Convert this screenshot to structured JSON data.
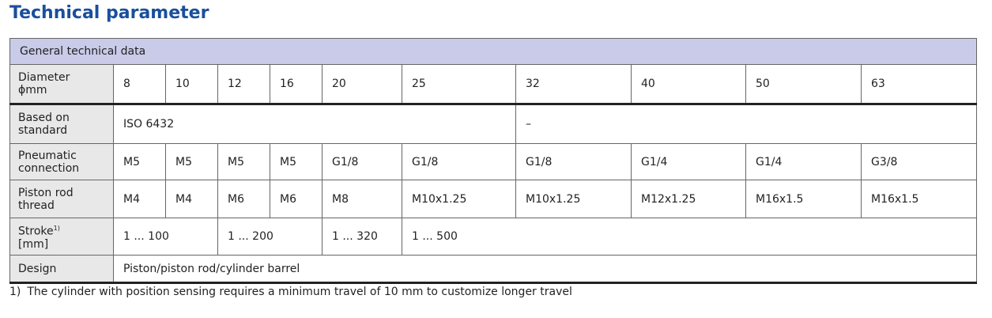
{
  "title": "Technical parameter",
  "table": {
    "section": "General technical data",
    "rows": [
      {
        "label": [
          "Diameter",
          "ϕmm"
        ],
        "cells": [
          "8",
          "10",
          "12",
          "16",
          "20",
          "25",
          "32",
          "40",
          "50",
          "63"
        ]
      },
      {
        "label": [
          "Based on",
          "standard"
        ],
        "cells": [
          "ISO 6432",
          "–"
        ]
      },
      {
        "label": [
          "Pneumatic",
          "connection"
        ],
        "cells": [
          "M5",
          "M5",
          "M5",
          "M5",
          "G1/8",
          "G1/8",
          "G1/8",
          "G1/4",
          "G1/4",
          "G3/8"
        ]
      },
      {
        "label": [
          "Piston rod",
          "thread"
        ],
        "cells": [
          "M4",
          "M4",
          "M6",
          "M6",
          "M8",
          "M10x1.25",
          "M10x1.25",
          "M12x1.25",
          "M16x1.5",
          "M16x1.5"
        ]
      },
      {
        "label": [
          "Stroke",
          "[mm]"
        ],
        "label_note": "1)",
        "cells": [
          "1 ... 100",
          "1 ... 200",
          "1 ... 320",
          "1 ... 500"
        ]
      },
      {
        "label": [
          "Design"
        ],
        "cells": [
          "Piston/piston rod/cylinder barrel"
        ]
      }
    ]
  },
  "footnote": {
    "marker": "1)",
    "text": "The cylinder with position sensing requires a minimum travel of 10 mm to customize longer travel"
  }
}
